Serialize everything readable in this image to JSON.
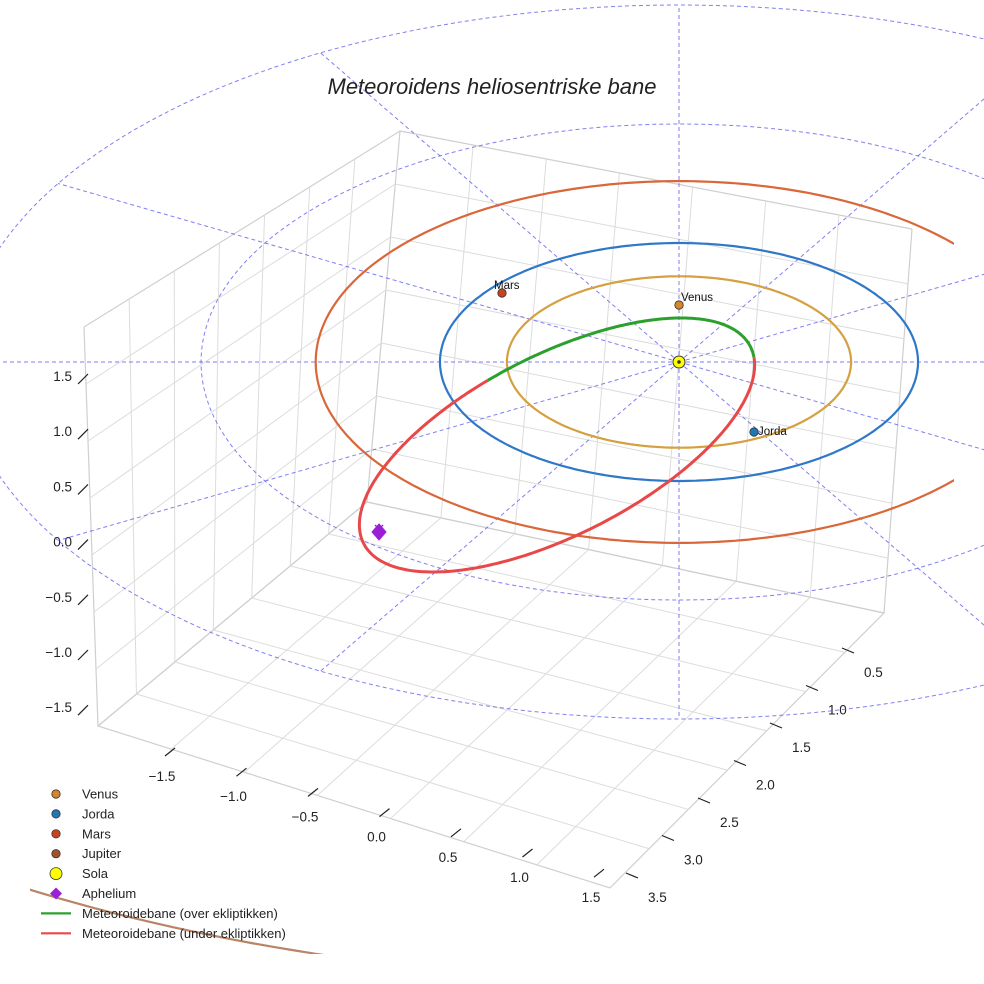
{
  "chart_data": {
    "type": "3d-orbit-plot",
    "title": "Meteoroidens heliosentriske bane",
    "axes": {
      "x": {
        "ticks": [
          -1.5,
          -1.0,
          -0.5,
          0.0,
          0.5,
          1.0,
          1.5
        ]
      },
      "y": {
        "ticks": [
          0.5,
          1.0,
          1.5,
          2.0,
          2.5,
          3.0,
          3.5
        ]
      },
      "z": {
        "ticks": [
          1.5,
          1.0,
          0.5,
          0.0,
          -0.5,
          -1.0,
          -1.5
        ]
      }
    },
    "tick_labels": {
      "x": [
        "−1.5",
        "−1.0",
        "−0.5",
        "0.0",
        "0.5",
        "1.0",
        "1.5"
      ],
      "y": [
        "0.5",
        "1.0",
        "1.5",
        "2.0",
        "2.5",
        "3.0",
        "3.5"
      ],
      "z": [
        "1.5",
        "1.0",
        "0.5",
        "0.0",
        "−0.5",
        "−1.0",
        "−1.5"
      ]
    },
    "orbits": [
      {
        "name": "Venus",
        "radius_au": 0.72,
        "color": "#d4a040"
      },
      {
        "name": "Jorda",
        "radius_au": 1.0,
        "color": "#2f78c8"
      },
      {
        "name": "Mars",
        "radius_au": 1.52,
        "color": "#d9673a"
      },
      {
        "name": "Jupiter",
        "radius_au": 5.2,
        "color": "#b88566"
      }
    ],
    "ecliptic_grid": {
      "rings_au": [
        1,
        2,
        3
      ],
      "spokes": 12,
      "color": "#5555ee",
      "style": "dashed"
    },
    "points": [
      {
        "name": "Venus",
        "label": "Venus",
        "color": "#d9862a"
      },
      {
        "name": "Jorda",
        "label": "Jorda",
        "color": "#1f77b4"
      },
      {
        "name": "Mars",
        "label": "Mars",
        "color": "#c8441c"
      },
      {
        "name": "Jupiter",
        "color": "#a0522d"
      },
      {
        "name": "Sola",
        "color": "#ffff00"
      },
      {
        "name": "Aphelium",
        "color": "#9b1fd6"
      }
    ],
    "meteoroid_orbit": [
      {
        "name": "Meteoroidebane (over ekliptikken)",
        "color": "#2ca02c"
      },
      {
        "name": "Meteoroidebane (under ekliptikken)",
        "color": "#e84848"
      }
    ],
    "legend": {
      "placement": "bottom-left",
      "entries": [
        {
          "label": "Venus",
          "marker": "circle",
          "color": "#d9862a"
        },
        {
          "label": "Jorda",
          "marker": "circle",
          "color": "#1f77b4"
        },
        {
          "label": "Mars",
          "marker": "circle",
          "color": "#c8441c"
        },
        {
          "label": "Jupiter",
          "marker": "circle",
          "color": "#a0522d"
        },
        {
          "label": "Sola",
          "marker": "circle",
          "color": "#ffff00"
        },
        {
          "label": "Aphelium",
          "marker": "diamond",
          "color": "#9b1fd6"
        },
        {
          "label": "Meteoroidebane (over ekliptikken)",
          "marker": "line",
          "color": "#2ca02c"
        },
        {
          "label": "Meteoroidebane (under ekliptikken)",
          "marker": "line",
          "color": "#e84848"
        }
      ]
    }
  }
}
